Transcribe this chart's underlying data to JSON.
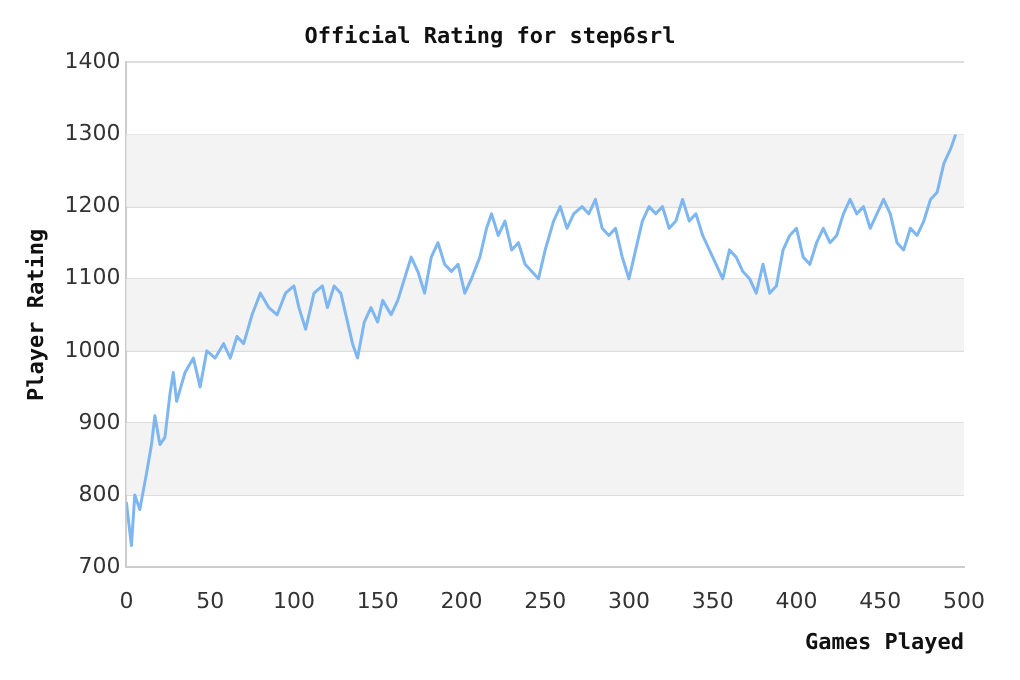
{
  "chart_data": {
    "type": "line",
    "title": "Official Rating for step6srl",
    "xlabel": "Games Played",
    "ylabel": "Player Rating",
    "xlim": [
      0,
      500
    ],
    "xticks": [
      0,
      50,
      100,
      150,
      200,
      250,
      300,
      350,
      400,
      450,
      500
    ],
    "ylim": [
      700,
      1400
    ],
    "yticks": [
      700,
      800,
      900,
      1000,
      1100,
      1200,
      1300,
      1400
    ],
    "grid": "y",
    "legend": false,
    "marker": "none",
    "line_style": "solid",
    "series": [
      {
        "color": "#7eb6f0",
        "x": [
          0,
          3,
          5,
          8,
          12,
          15,
          17,
          20,
          23,
          26,
          28,
          30,
          35,
          40,
          44,
          48,
          53,
          58,
          62,
          66,
          70,
          75,
          80,
          85,
          90,
          95,
          100,
          103,
          107,
          112,
          117,
          120,
          124,
          128,
          132,
          135,
          138,
          142,
          146,
          150,
          153,
          158,
          162,
          166,
          170,
          174,
          178,
          182,
          186,
          190,
          194,
          198,
          202,
          206,
          211,
          215,
          218,
          222,
          226,
          230,
          234,
          238,
          242,
          246,
          250,
          255,
          259,
          263,
          267,
          272,
          276,
          280,
          284,
          288,
          292,
          296,
          300,
          304,
          308,
          312,
          316,
          320,
          324,
          328,
          332,
          336,
          340,
          344,
          348,
          352,
          356,
          360,
          364,
          368,
          372,
          376,
          380,
          384,
          388,
          392,
          396,
          400,
          404,
          408,
          412,
          416,
          420,
          424,
          428,
          432,
          436,
          440,
          444,
          448,
          452,
          456,
          460,
          464,
          468,
          472,
          476,
          480,
          484,
          488,
          492,
          495
        ],
        "values": [
          790,
          730,
          800,
          780,
          830,
          870,
          910,
          870,
          880,
          940,
          970,
          930,
          970,
          990,
          950,
          1000,
          990,
          1010,
          990,
          1020,
          1010,
          1050,
          1080,
          1060,
          1050,
          1080,
          1090,
          1060,
          1030,
          1080,
          1090,
          1060,
          1090,
          1080,
          1040,
          1010,
          990,
          1040,
          1060,
          1040,
          1070,
          1050,
          1070,
          1100,
          1130,
          1110,
          1080,
          1130,
          1150,
          1120,
          1110,
          1120,
          1080,
          1100,
          1130,
          1170,
          1190,
          1160,
          1180,
          1140,
          1150,
          1120,
          1110,
          1100,
          1140,
          1180,
          1200,
          1170,
          1190,
          1200,
          1190,
          1210,
          1170,
          1160,
          1170,
          1130,
          1100,
          1140,
          1180,
          1200,
          1190,
          1200,
          1170,
          1180,
          1210,
          1180,
          1190,
          1160,
          1140,
          1120,
          1100,
          1140,
          1130,
          1110,
          1100,
          1080,
          1120,
          1080,
          1090,
          1140,
          1160,
          1170,
          1130,
          1120,
          1150,
          1170,
          1150,
          1160,
          1190,
          1210,
          1190,
          1200,
          1170,
          1190,
          1210,
          1190,
          1150,
          1140,
          1170,
          1160,
          1180,
          1210,
          1220,
          1260,
          1280,
          1300
        ]
      }
    ]
  }
}
